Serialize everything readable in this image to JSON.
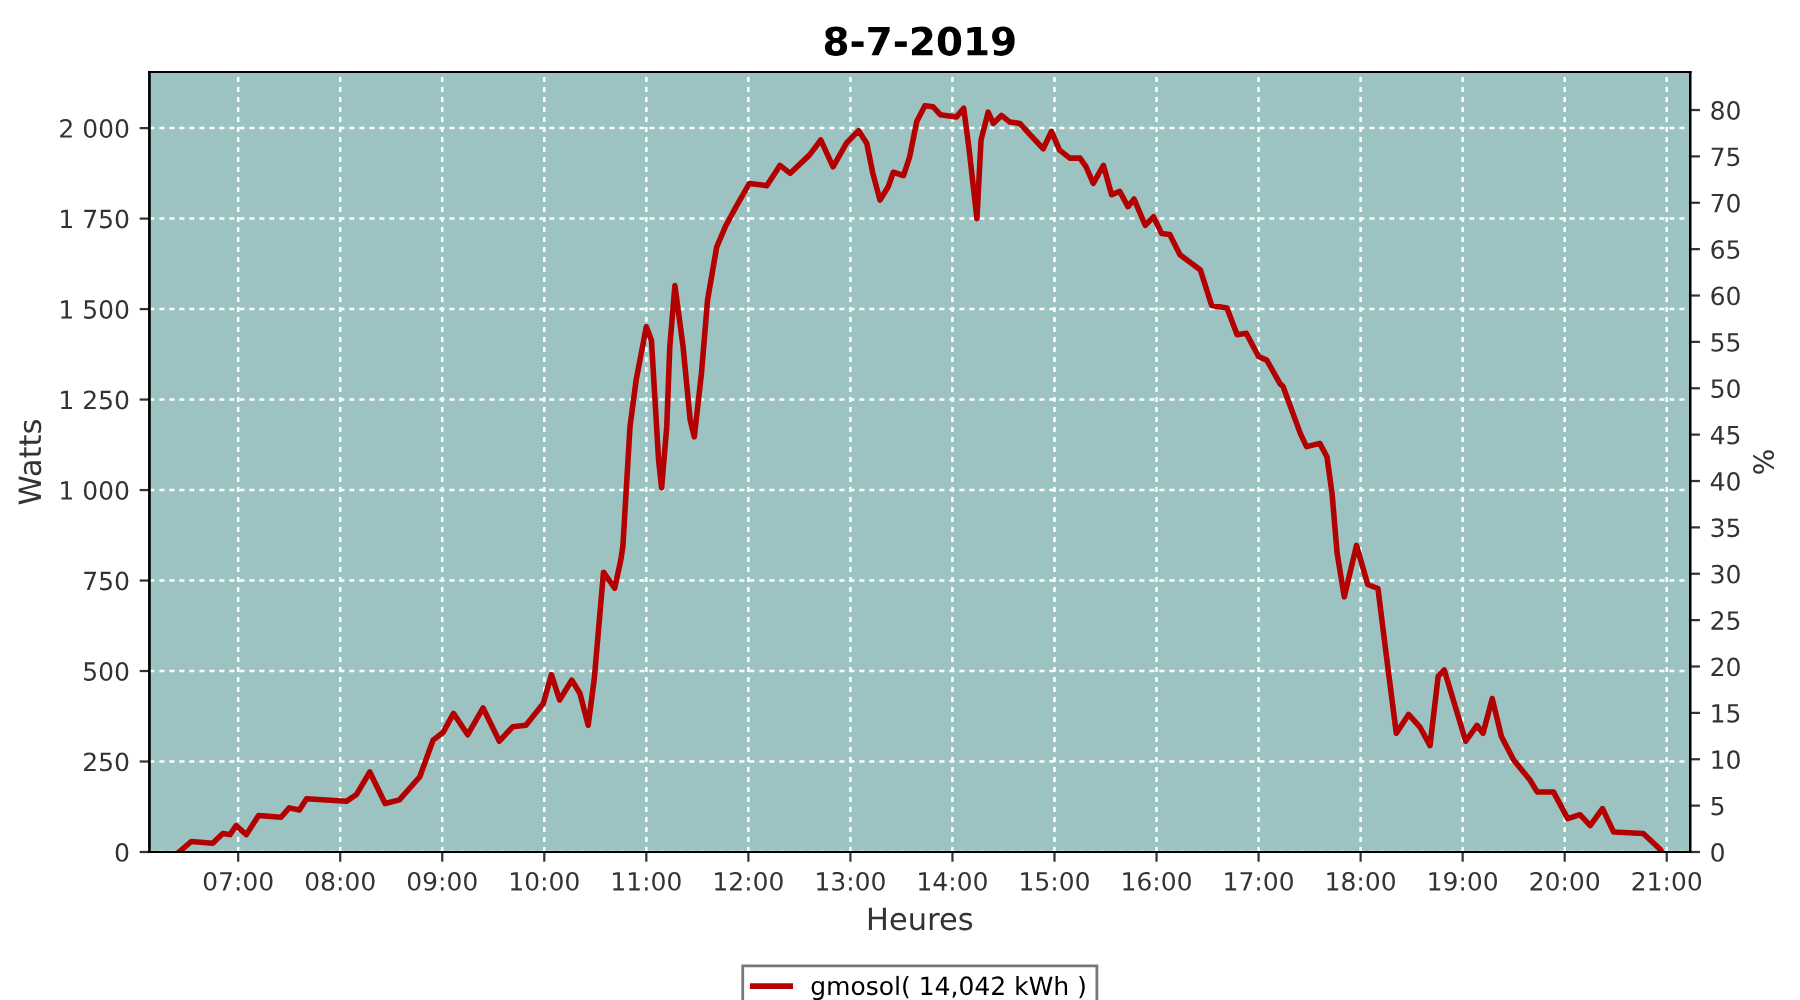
{
  "chart_data": {
    "type": "line",
    "title": "8-7-2019",
    "xlabel": "Heures",
    "ylabel": "Watts",
    "y2label": "%",
    "xlim": [
      6.13,
      21.23
    ],
    "xticks": [
      {
        "value": 7,
        "label": "07:00"
      },
      {
        "value": 8,
        "label": "08:00"
      },
      {
        "value": 9,
        "label": "09:00"
      },
      {
        "value": 10,
        "label": "10:00"
      },
      {
        "value": 11,
        "label": "11:00"
      },
      {
        "value": 12,
        "label": "12:00"
      },
      {
        "value": 13,
        "label": "13:00"
      },
      {
        "value": 14,
        "label": "14:00"
      },
      {
        "value": 15,
        "label": "15:00"
      },
      {
        "value": 16,
        "label": "16:00"
      },
      {
        "value": 17,
        "label": "17:00"
      },
      {
        "value": 18,
        "label": "18:00"
      },
      {
        "value": 19,
        "label": "19:00"
      },
      {
        "value": 20,
        "label": "20:00"
      },
      {
        "value": 21,
        "label": "21:00"
      }
    ],
    "ylim": [
      0,
      2155
    ],
    "yticks": [
      0,
      250,
      500,
      750,
      {
        "value": 1000,
        "label": "1 000"
      },
      {
        "value": 1250,
        "label": "1 250"
      },
      {
        "value": 1500,
        "label": "1 500"
      },
      {
        "value": 1750,
        "label": "1 750"
      },
      {
        "value": 2000,
        "label": "2 000"
      }
    ],
    "y2lim": [
      0,
      84.1
    ],
    "y2ticks": [
      0,
      5,
      10,
      15,
      20,
      25,
      30,
      35,
      40,
      45,
      50,
      55,
      60,
      65,
      70,
      75,
      80
    ],
    "grid": true,
    "legend": "bottom",
    "marker": "none",
    "line_style": "solid",
    "series": [
      {
        "name": "gmosol( 14,042 kWh )",
        "color": "#b30000",
        "x": [
          6.42,
          6.54,
          6.75,
          6.85,
          6.92,
          6.98,
          7.08,
          7.2,
          7.42,
          7.5,
          7.6,
          7.67,
          8.06,
          8.16,
          8.29,
          8.44,
          8.58,
          8.78,
          8.91,
          9.01,
          9.11,
          9.25,
          9.4,
          9.56,
          9.69,
          9.82,
          9.99,
          10.07,
          10.15,
          10.27,
          10.35,
          10.43,
          10.49,
          10.58,
          10.69,
          10.75,
          10.77,
          10.84,
          10.9,
          11.0,
          11.05,
          11.12,
          11.15,
          11.2,
          11.23,
          11.28,
          11.36,
          11.43,
          11.47,
          11.54,
          11.6,
          11.69,
          11.78,
          11.88,
          12.01,
          12.18,
          12.31,
          12.41,
          12.6,
          12.71,
          12.83,
          12.96,
          13.08,
          13.16,
          13.22,
          13.29,
          13.37,
          13.42,
          13.52,
          13.58,
          13.65,
          13.73,
          13.81,
          13.88,
          14.04,
          14.11,
          14.16,
          14.24,
          14.28,
          14.35,
          14.4,
          14.48,
          14.56,
          14.66,
          14.76,
          14.89,
          14.97,
          15.05,
          15.15,
          15.25,
          15.31,
          15.38,
          15.48,
          15.56,
          15.64,
          15.72,
          15.78,
          15.89,
          15.97,
          16.05,
          16.13,
          16.23,
          16.43,
          16.54,
          16.69,
          16.79,
          16.88,
          17.0,
          17.08,
          17.21,
          17.24,
          17.41,
          17.47,
          17.6,
          17.67,
          17.72,
          17.77,
          17.84,
          17.96,
          18.07,
          18.17,
          18.27,
          18.35,
          18.47,
          18.58,
          18.68,
          18.76,
          18.82,
          19.03,
          19.14,
          19.2,
          19.29,
          19.38,
          19.5,
          19.66,
          19.73,
          19.89,
          20.03,
          20.15,
          20.25,
          20.37,
          20.48,
          20.77,
          20.94,
          20.95
        ],
        "values": [
          0,
          29,
          24,
          51,
          48,
          73,
          48,
          101,
          96,
          122,
          116,
          147,
          140,
          159,
          221,
          134,
          144,
          208,
          309,
          331,
          383,
          324,
          398,
          306,
          346,
          350,
          410,
          490,
          420,
          475,
          438,
          350,
          479,
          773,
          729,
          807,
          844,
          1175,
          1304,
          1451,
          1414,
          1083,
          1006,
          1175,
          1396,
          1565,
          1396,
          1193,
          1147,
          1322,
          1525,
          1672,
          1731,
          1783,
          1847,
          1841,
          1897,
          1875,
          1926,
          1967,
          1893,
          1958,
          1993,
          1958,
          1875,
          1801,
          1838,
          1878,
          1869,
          1920,
          2018,
          2062,
          2059,
          2037,
          2031,
          2055,
          1949,
          1750,
          1967,
          2044,
          2013,
          2035,
          2017,
          2013,
          1982,
          1943,
          1991,
          1939,
          1917,
          1917,
          1893,
          1847,
          1897,
          1816,
          1825,
          1783,
          1804,
          1731,
          1755,
          1709,
          1706,
          1650,
          1608,
          1510,
          1503,
          1429,
          1433,
          1369,
          1359,
          1294,
          1286,
          1156,
          1120,
          1129,
          1092,
          991,
          825,
          705,
          847,
          739,
          728,
          503,
          328,
          380,
          346,
          294,
          485,
          503,
          306,
          350,
          328,
          424,
          319,
          254,
          199,
          166,
          166,
          92,
          103,
          73,
          120,
          55,
          51,
          6,
          0
        ]
      }
    ]
  }
}
